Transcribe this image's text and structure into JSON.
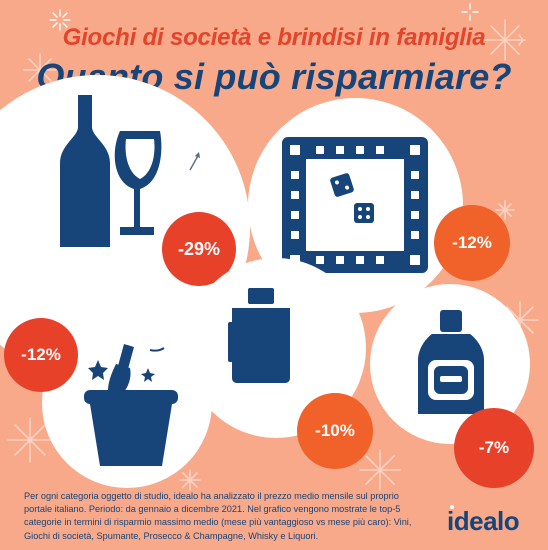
{
  "header": {
    "subtitle": "Giochi di società e brindisi in famiglia",
    "title": "Quanto si può risparmiare?"
  },
  "categories": [
    {
      "name": "Vini",
      "badge": "-29%",
      "icon": "wine-bottle-and-glass-icon"
    },
    {
      "name": "Giochi di società",
      "badge": "-12%",
      "icon": "board-game-icon"
    },
    {
      "name": "Spumante, Prosecco & Champagne",
      "badge": "-12%",
      "icon": "champagne-bucket-icon"
    },
    {
      "name": "Whisky",
      "badge": "-10%",
      "icon": "whisky-bottle-icon"
    },
    {
      "name": "Liquori",
      "badge": "-7%",
      "icon": "liquor-flask-icon"
    }
  ],
  "footer": {
    "note": "Per ogni categoria oggetto di studio, idealo ha analizzato il prezzo medio mensile sul proprio portale italiano. Periodo: da gennaio a dicembre 2021. Nel grafico vengono mostrate le top-5 categorie in termini di risparmio massimo medio (mese più vantaggioso vs mese più caro): Vini, Giochi di società, Spumante, Prosecco & Champagne, Whisky e Liquori.",
    "brand": "idealo"
  },
  "colors": {
    "background": "#f7a98a",
    "title_red": "#e2452b",
    "navy": "#17457a",
    "badge_red": "#e8412a",
    "badge_orange": "#f0622a",
    "disc_white": "#ffffff"
  }
}
